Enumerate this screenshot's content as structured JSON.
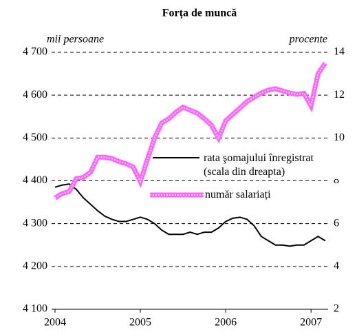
{
  "chart_data": {
    "type": "line",
    "title": "Forța de muncă",
    "y_label": "mii persoane",
    "y2_label": "procente",
    "x": [
      2004.0,
      2004.083,
      2004.167,
      2004.25,
      2004.333,
      2004.417,
      2004.5,
      2004.583,
      2004.667,
      2004.75,
      2004.833,
      2004.917,
      2005.0,
      2005.083,
      2005.167,
      2005.25,
      2005.333,
      2005.417,
      2005.5,
      2005.583,
      2005.667,
      2005.75,
      2005.833,
      2005.917,
      2006.0,
      2006.083,
      2006.167,
      2006.25,
      2006.333,
      2006.417,
      2006.5,
      2006.583,
      2006.667,
      2006.75,
      2006.833,
      2006.917,
      2007.0,
      2007.083,
      2007.167
    ],
    "series": [
      {
        "name": "rata şomajului înregistrat (scala din dreapta)",
        "color": "#000000",
        "axis": "y2",
        "values": [
          7.7,
          7.8,
          7.85,
          7.6,
          7.2,
          6.9,
          6.6,
          6.35,
          6.2,
          6.1,
          6.1,
          6.2,
          6.3,
          6.2,
          6.0,
          5.7,
          5.5,
          5.5,
          5.5,
          5.6,
          5.5,
          5.6,
          5.6,
          5.8,
          6.1,
          6.25,
          6.3,
          6.2,
          5.9,
          5.4,
          5.2,
          5.0,
          5.0,
          4.95,
          5.0,
          5.0,
          5.2,
          5.4,
          5.2
        ]
      },
      {
        "name": "număr salariați",
        "color": "#ff66ff",
        "values": [
          4360,
          4370,
          4375,
          4405,
          4408,
          4420,
          4455,
          4455,
          4452,
          4445,
          4440,
          4432,
          4398,
          4450,
          4500,
          4535,
          4545,
          4560,
          4572,
          4565,
          4558,
          4545,
          4530,
          4500,
          4540,
          4555,
          4570,
          4585,
          4595,
          4605,
          4612,
          4615,
          4610,
          4605,
          4602,
          4604,
          4575,
          4650,
          4675
        ]
      }
    ],
    "xlim": [
      2003.96,
      2007.2
    ],
    "xticks": [
      2004,
      2005,
      2006,
      2007
    ],
    "ylim": [
      4100,
      4700
    ],
    "yticks": [
      {
        "value": 4100,
        "label": "4 100"
      },
      {
        "value": 4200,
        "label": "4 200"
      },
      {
        "value": 4300,
        "label": "4 300"
      },
      {
        "value": 4400,
        "label": "4 400"
      },
      {
        "value": 4500,
        "label": "4 500"
      },
      {
        "value": 4600,
        "label": "4 600"
      },
      {
        "value": 4700,
        "label": "4 700"
      }
    ],
    "y2lim": [
      2,
      14
    ],
    "y2ticks": [
      2,
      4,
      6,
      8,
      10,
      12,
      14
    ],
    "grid": true
  }
}
